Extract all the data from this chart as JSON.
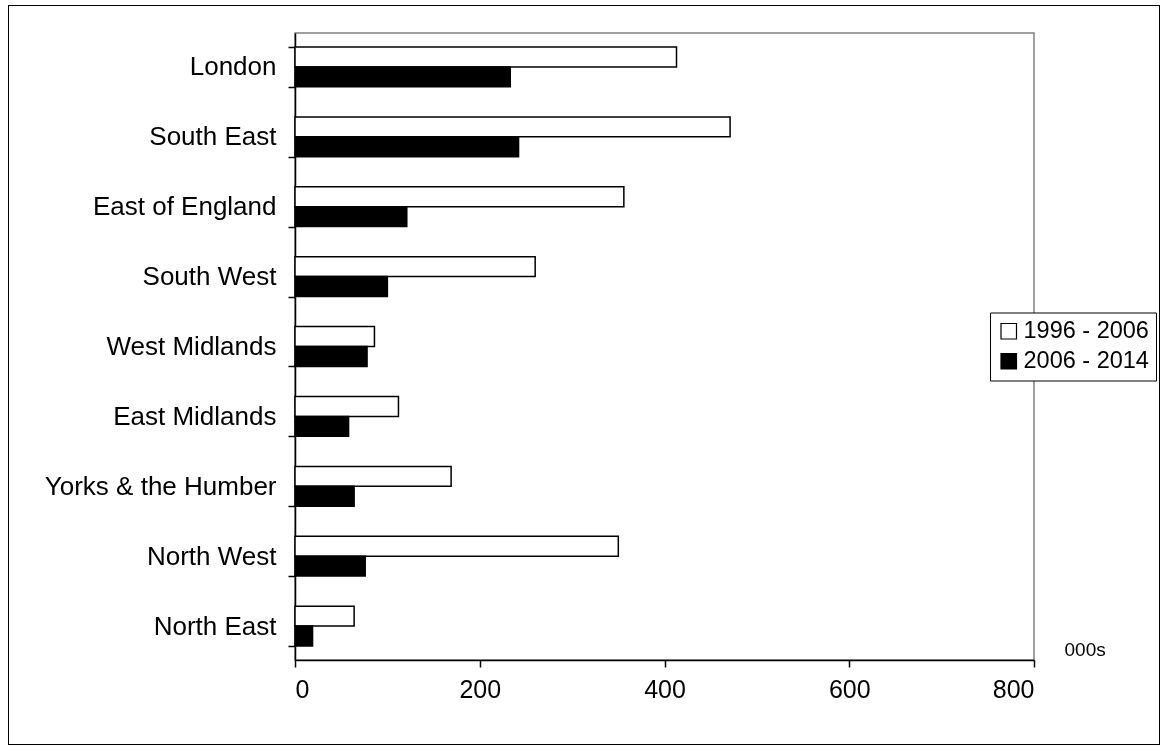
{
  "chart_data": {
    "type": "bar",
    "orientation": "horizontal",
    "categories": [
      "London",
      "South East",
      "East of England",
      "South West",
      "West Midlands",
      "East Midlands",
      "Yorks & the Humber",
      "North West",
      "North East"
    ],
    "series": [
      {
        "name": "1996 - 2006",
        "color": "#ffffff",
        "values": [
          413,
          471,
          356,
          260,
          86,
          112,
          169,
          350,
          64
        ]
      },
      {
        "name": "2006 - 2014",
        "color": "#000000",
        "values": [
          233,
          242,
          121,
          100,
          78,
          58,
          64,
          76,
          19
        ]
      }
    ],
    "xlabel": "000s",
    "xlim": [
      0,
      800
    ],
    "xticks": [
      0,
      200,
      400,
      600,
      800
    ],
    "legend": "right"
  }
}
